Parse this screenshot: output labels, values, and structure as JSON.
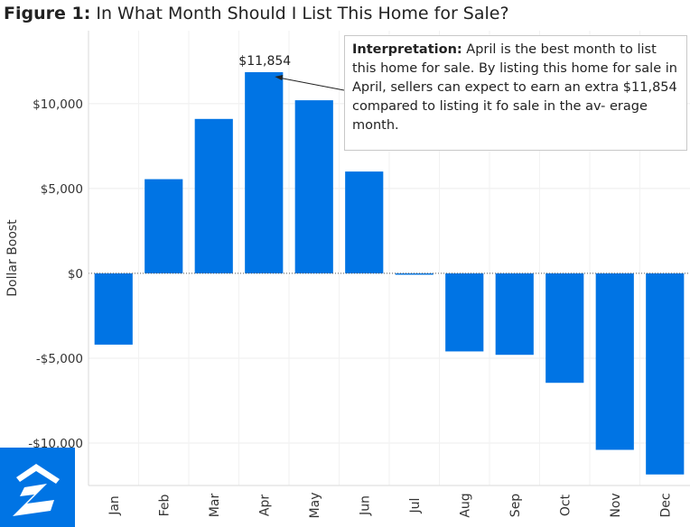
{
  "title": {
    "prefix": "Figure 1:",
    "text": " In What Month Should I List This Home for Sale?"
  },
  "annotation": {
    "label": "Interpretation:",
    "text": " April is the best month to list this home for sale. By listing this home for sale in April, sellers can expect to earn an extra $11,854 compared to listing it fo sale in the av- erage month."
  },
  "logo": {
    "icon": "zillow-logo-icon",
    "color": "#0074e4"
  },
  "chart_data": {
    "type": "bar",
    "title": "",
    "xlabel": "",
    "ylabel": "Dollar Boost",
    "categories": [
      "Jan",
      "Feb",
      "Mar",
      "Apr",
      "May",
      "Jun",
      "Jul",
      "Aug",
      "Sep",
      "Oct",
      "Nov",
      "Dec"
    ],
    "values": [
      -4200,
      5550,
      9100,
      11854,
      10200,
      6000,
      -80,
      -4600,
      -4800,
      -6450,
      -10400,
      -11850
    ],
    "ylim": [
      -12500,
      14300
    ],
    "yticks": [
      10000,
      5000,
      0,
      -5000,
      -10000
    ],
    "ytick_labels": [
      "$10,000",
      "$5,000",
      "$0",
      "-$5,000",
      "-$10,000"
    ],
    "data_labels": [
      {
        "category": "Apr",
        "text": "$11,854"
      }
    ],
    "bar_color": "#0074e4",
    "grid": "horizontal",
    "legend": "none"
  }
}
